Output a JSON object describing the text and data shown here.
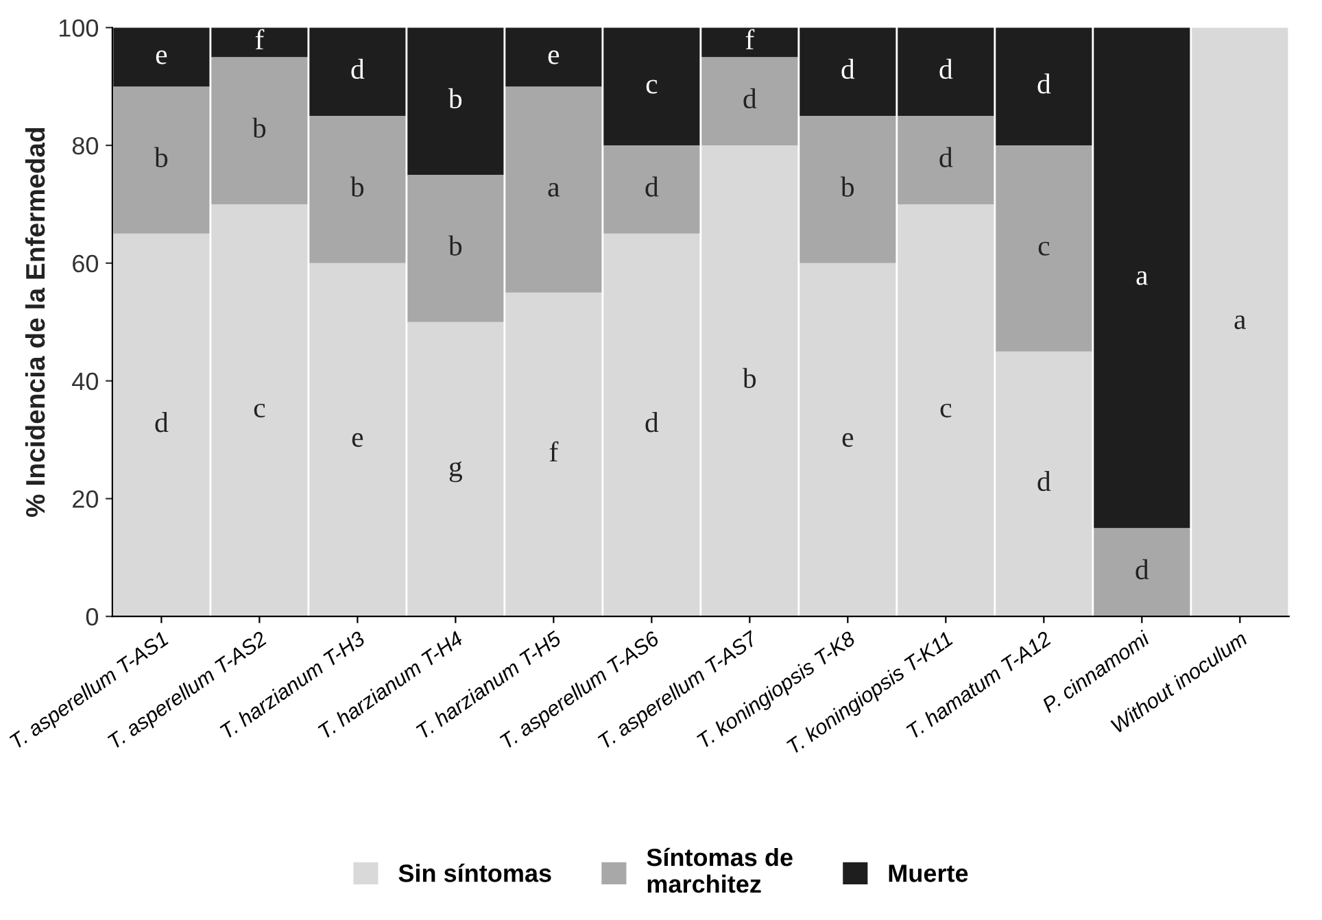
{
  "chart_data": {
    "type": "bar",
    "stacked": true,
    "ylabel": "% Incidencia de la Enfermedad",
    "categories": [
      "T. asperellum T-AS1",
      "T. asperellum T-AS2",
      "T. harzianum T-H3",
      "T. harzianum T-H4",
      "T. harzianum T-H5",
      "T. asperellum T-AS6",
      "T. asperellum T-AS7",
      "T. koningiopsis T-K8",
      "T. koningiopsis T-K11",
      "T. hamatum T-A12",
      "P. cinnamomi",
      "Without inoculum"
    ],
    "series": [
      {
        "name": "Sin síntomas",
        "color": "#d9d9d9",
        "values": [
          65,
          70,
          60,
          50,
          55,
          65,
          80,
          60,
          70,
          45,
          0,
          100
        ],
        "value_labels": [
          "d",
          "c",
          "e",
          "g",
          "f",
          "d",
          "b",
          "e",
          "c",
          "d",
          null,
          "a"
        ]
      },
      {
        "name": "Síntomas de\nmarchitez",
        "color": "#a8a8a8",
        "values": [
          25,
          25,
          25,
          25,
          35,
          15,
          15,
          25,
          15,
          35,
          15,
          0
        ],
        "value_labels": [
          "b",
          "b",
          "b",
          "b",
          "a",
          "d",
          "d",
          "b",
          "d",
          "c",
          "d",
          null
        ]
      },
      {
        "name": "Muerte",
        "color": "#1e1e1e",
        "values": [
          10,
          5,
          15,
          25,
          10,
          20,
          5,
          15,
          15,
          20,
          85,
          0
        ],
        "value_labels": [
          "e",
          "f",
          "d",
          "b",
          "e",
          "c",
          "f",
          "d",
          "d",
          "d",
          "a",
          null
        ]
      }
    ],
    "ylim": [
      0,
      100
    ],
    "yticks": [
      0,
      20,
      40,
      60,
      80,
      100
    ],
    "grid": false,
    "legend": "bottom"
  }
}
